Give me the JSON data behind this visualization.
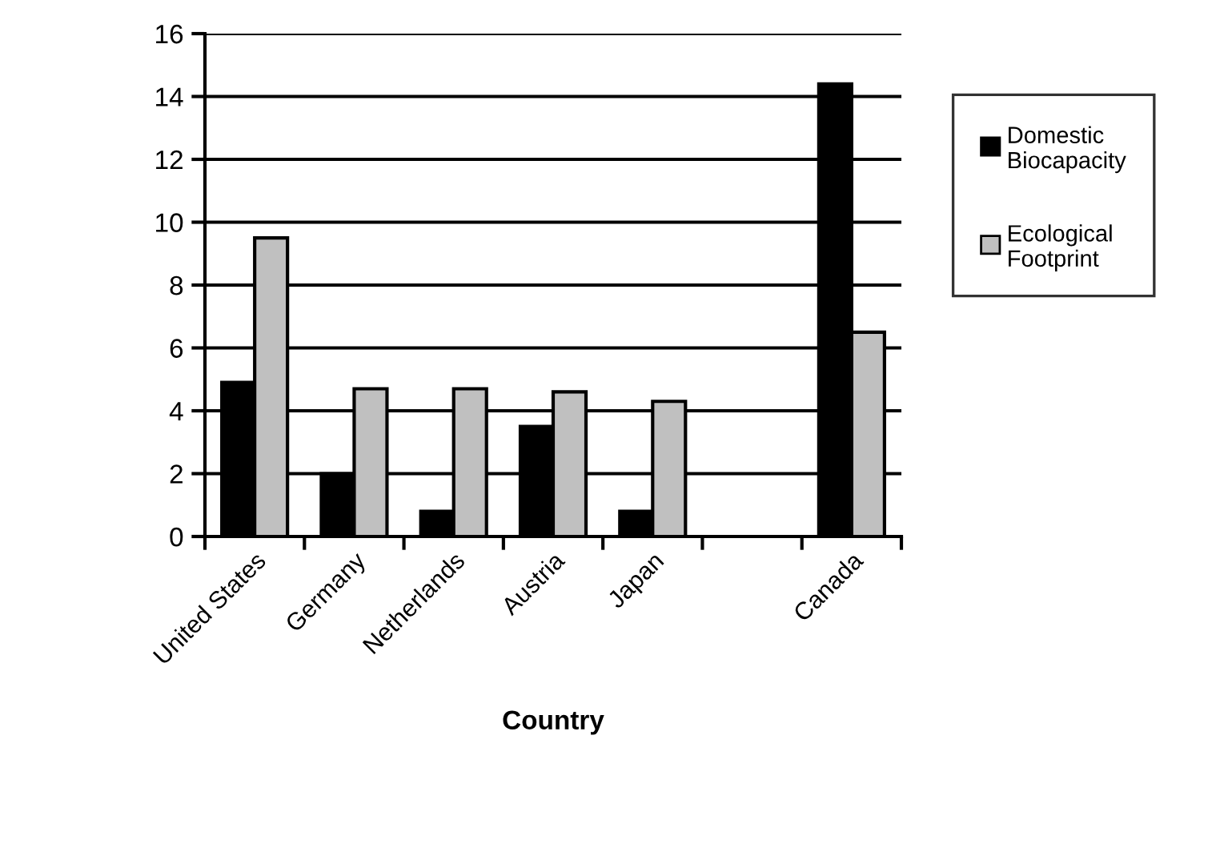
{
  "chart_data": {
    "type": "bar",
    "xlabel": "Country",
    "categories": [
      "United States",
      "Germany",
      "Netherlands",
      "Austria",
      "Japan",
      null,
      "Canada"
    ],
    "series": [
      {
        "name": "Domestic Biocapacity",
        "color": "#000000",
        "values": [
          4.9,
          2.0,
          0.8,
          3.5,
          0.8,
          null,
          14.4
        ]
      },
      {
        "name": "Ecological Footprint",
        "color": "#c0c0c0",
        "values": [
          9.5,
          4.7,
          4.7,
          4.6,
          4.3,
          null,
          6.5
        ]
      }
    ],
    "ylim": [
      0,
      16
    ],
    "yticks": [
      0,
      2,
      4,
      6,
      8,
      10,
      12,
      14,
      16
    ],
    "grid": "y",
    "legend": "right"
  }
}
